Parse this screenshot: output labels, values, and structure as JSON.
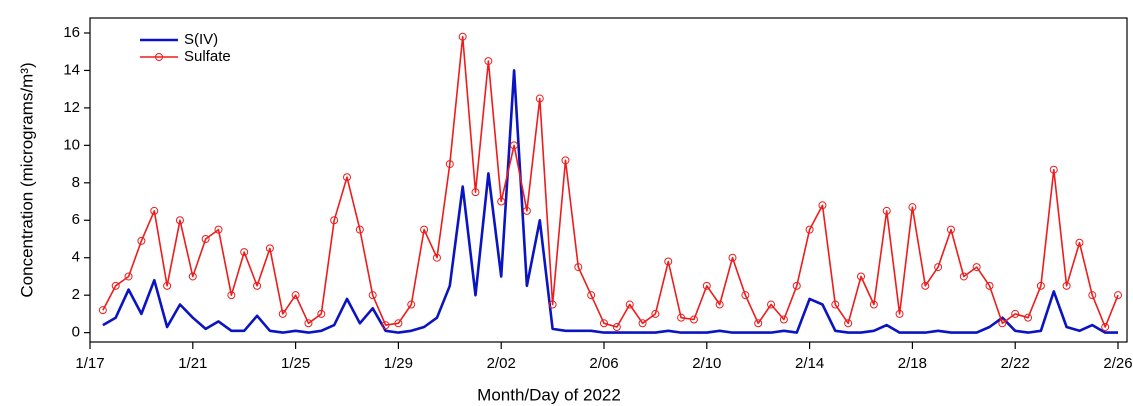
{
  "chart_data": {
    "type": "line",
    "x_label": "Month/Day of 2022",
    "y_label": "Concentration (micrograms/m³)",
    "legend": "upper left",
    "xlim": [
      17,
      57.35
    ],
    "ylim": [
      -0.5,
      16.8
    ],
    "xticks": [
      {
        "value": 17,
        "label": "1/17"
      },
      {
        "value": 21,
        "label": "1/21"
      },
      {
        "value": 25,
        "label": "1/25"
      },
      {
        "value": 29,
        "label": "1/29"
      },
      {
        "value": 33,
        "label": "2/02"
      },
      {
        "value": 37,
        "label": "2/06"
      },
      {
        "value": 41,
        "label": "2/10"
      },
      {
        "value": 45,
        "label": "2/14"
      },
      {
        "value": 49,
        "label": "2/18"
      },
      {
        "value": 53,
        "label": "2/22"
      },
      {
        "value": 57,
        "label": "2/26"
      }
    ],
    "yticks": [
      0,
      2,
      4,
      6,
      8,
      10,
      12,
      14,
      16
    ],
    "x": [
      17.5,
      18,
      18.5,
      19,
      19.5,
      20,
      20.5,
      21,
      21.5,
      22,
      22.5,
      23,
      23.5,
      24,
      24.5,
      25,
      25.5,
      26,
      26.5,
      27,
      27.5,
      28,
      28.5,
      29,
      29.5,
      30,
      30.5,
      31,
      31.5,
      32,
      32.5,
      33,
      33.5,
      34,
      34.5,
      35,
      35.5,
      36,
      36.5,
      37,
      37.5,
      38,
      38.5,
      39,
      39.5,
      40,
      40.5,
      41,
      41.5,
      42,
      42.5,
      43,
      43.5,
      44,
      44.5,
      45,
      45.5,
      46,
      46.5,
      47,
      47.5,
      48,
      48.5,
      49,
      49.5,
      50,
      50.5,
      51,
      51.5,
      52,
      52.5,
      53,
      53.5,
      54,
      54.5,
      55,
      55.5,
      56,
      56.5,
      57
    ],
    "series": [
      {
        "name": "S(IV)",
        "color": "#0a14c0",
        "marker": false,
        "values": [
          0.4,
          0.8,
          2.3,
          1.0,
          2.8,
          0.3,
          1.5,
          0.8,
          0.2,
          0.6,
          0.1,
          0.1,
          0.9,
          0.1,
          0.0,
          0.1,
          0.0,
          0.1,
          0.4,
          1.8,
          0.5,
          1.3,
          0.1,
          0.0,
          0.1,
          0.3,
          0.8,
          2.5,
          7.8,
          2.0,
          8.5,
          3.0,
          14.0,
          2.5,
          6.0,
          0.2,
          0.1,
          0.1,
          0.1,
          0.0,
          0.0,
          0.0,
          0.0,
          0.0,
          0.1,
          0.0,
          0.0,
          0.0,
          0.1,
          0.0,
          0.0,
          0.0,
          0.0,
          0.1,
          0.0,
          1.8,
          1.5,
          0.1,
          0.0,
          0.0,
          0.1,
          0.4,
          0.0,
          0.0,
          0.0,
          0.1,
          0.0,
          0.0,
          0.0,
          0.3,
          0.8,
          0.1,
          0.0,
          0.1,
          2.2,
          0.3,
          0.1,
          0.4,
          0.0,
          0.0
        ]
      },
      {
        "name": "Sulfate",
        "color": "#ee1c1c",
        "marker": true,
        "values": [
          1.2,
          2.5,
          3.0,
          4.9,
          6.5,
          2.5,
          6.0,
          3.0,
          5.0,
          5.5,
          2.0,
          4.3,
          2.5,
          4.5,
          1.0,
          2.0,
          0.5,
          1.0,
          6.0,
          8.3,
          5.5,
          2.0,
          0.4,
          0.5,
          1.5,
          5.5,
          4.0,
          9.0,
          15.8,
          7.5,
          14.5,
          7.0,
          10.0,
          6.5,
          12.5,
          1.5,
          9.2,
          3.5,
          2.0,
          0.5,
          0.3,
          1.5,
          0.5,
          1.0,
          3.8,
          0.8,
          0.7,
          2.5,
          1.5,
          4.0,
          2.0,
          0.5,
          1.5,
          0.7,
          2.5,
          5.5,
          6.8,
          1.5,
          0.5,
          3.0,
          1.5,
          6.5,
          1.0,
          6.7,
          2.5,
          3.5,
          5.5,
          3.0,
          3.5,
          2.5,
          0.5,
          1.0,
          0.8,
          2.5,
          8.7,
          2.5,
          4.8,
          2.0,
          0.3,
          2.0
        ]
      }
    ]
  }
}
